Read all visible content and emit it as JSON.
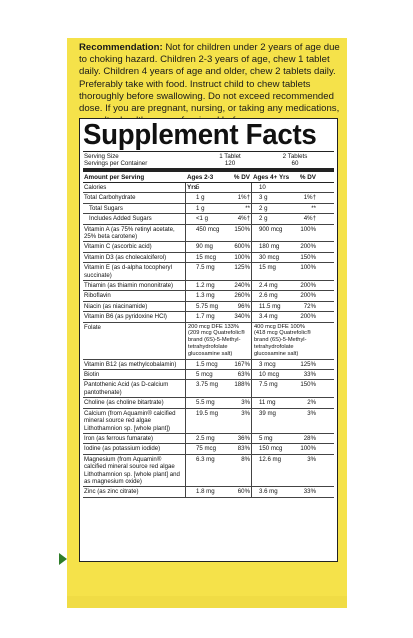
{
  "recommendation": {
    "heading": "Recommendation:",
    "text": " Not for children under 2 years of age due to choking hazard. Children 2-3 years of age, chew 1 tablet daily. Children 4 years of age and older, chew 2 tablets daily. Preferably take with food. Instruct child to chew tablets thoroughly before swallowing. Do not exceed recommended dose. If you are pregnant, nursing, or taking any medications, consult a healthcare professional before use."
  },
  "facts": {
    "title": "Supplement Facts",
    "serving_size_label": "Serving Size",
    "servings_label": "Servings per Container",
    "col_a_size": "1 Tablet",
    "col_a_servings": "120",
    "col_b_size": "2 Tablets",
    "col_b_servings": "60",
    "header": {
      "amount": "Amount per Serving",
      "age_a": "Ages 2-3 Yrs",
      "dv_a": "% DV",
      "age_b": "Ages 4+ Yrs",
      "dv_b": "% DV"
    },
    "rows": [
      {
        "name": "Calories",
        "a": "5",
        "da": "",
        "b": "10",
        "db": ""
      },
      {
        "name": "Total Carbohydrate",
        "a": "1 g",
        "da": "1%†",
        "b": "3 g",
        "db": "1%†"
      },
      {
        "name": "Total Sugars",
        "a": "1 g",
        "da": "**",
        "b": "2 g",
        "db": "**",
        "sub": true
      },
      {
        "name": "Includes Added Sugars",
        "a": "<1 g",
        "da": "4%†",
        "b": "2 g",
        "db": "4%†",
        "sub": true
      },
      {
        "name": "Vitamin A (as 75% retinyl acetate, 25% beta carotene)",
        "a": "450 mcg",
        "da": "150%",
        "b": "900 mcg",
        "db": "100%"
      },
      {
        "name": "Vitamin C (ascorbic acid)",
        "a": "90 mg",
        "da": "600%",
        "b": "180 mg",
        "db": "200%"
      },
      {
        "name": "Vitamin D3 (as cholecalciferol)",
        "a": "15 mcg",
        "da": "100%",
        "b": "30 mcg",
        "db": "150%"
      },
      {
        "name": "Vitamin E (as d-alpha tocopheryl succinate)",
        "a": "7.5 mg",
        "da": "125%",
        "b": "15 mg",
        "db": "100%"
      },
      {
        "name": "Thiamin (as thiamin mononitrate)",
        "a": "1.2 mg",
        "da": "240%",
        "b": "2.4 mg",
        "db": "200%"
      },
      {
        "name": "Riboflavin",
        "a": "1.3 mg",
        "da": "260%",
        "b": "2.6 mg",
        "db": "200%"
      },
      {
        "name": "Niacin (as niacinamide)",
        "a": "5.75 mg",
        "da": "96%",
        "b": "11.5 mg",
        "db": "72%"
      },
      {
        "name": "Vitamin B6 (as pyridoxine HCl)",
        "a": "1.7 mg",
        "da": "340%",
        "b": "3.4 mg",
        "db": "200%"
      },
      {
        "name": "Folate",
        "a": "200 mcg DFE 133% (209 mcg Quatrefolic® brand (6S)-5-Methyl-tetrahydrofolate glucosamine salt)",
        "da": "",
        "b": "400 mcg DFE 100% (418 mcg Quatrefolic® brand (6S)-5-Methyl-tetrahydrofolate glucosamine salt)",
        "db": "",
        "folate": true
      },
      {
        "name": "Vitamin B12 (as methylcobalamin)",
        "a": "1.5 mcg",
        "da": "167%",
        "b": "3 mcg",
        "db": "125%"
      },
      {
        "name": "Biotin",
        "a": "5 mcg",
        "da": "63%",
        "b": "10 mcg",
        "db": "33%"
      },
      {
        "name": "Pantothenic Acid (as D-calcium pantothenate)",
        "a": "3.75 mg",
        "da": "188%",
        "b": "7.5 mg",
        "db": "150%"
      },
      {
        "name": "Choline (as choline bitartrate)",
        "a": "5.5 mg",
        "da": "3%",
        "b": "11 mg",
        "db": "2%"
      },
      {
        "name": "Calcium (from Aquamin® calcified mineral source red algae Lithothamnion sp. [whole plant])",
        "a": "19.5 mg",
        "da": "3%",
        "b": "39 mg",
        "db": "3%"
      },
      {
        "name": "Iron (as ferrous fumarate)",
        "a": "2.5 mg",
        "da": "36%",
        "b": "5 mg",
        "db": "28%"
      },
      {
        "name": "Iodine (as potassium iodide)",
        "a": "75 mcg",
        "da": "83%",
        "b": "150 mcg",
        "db": "100%"
      },
      {
        "name": "Magnesium (from Aquamin® calcified mineral source red algae Lithothamnion sp. [whole plant] and as magnesium oxide)",
        "a": "6.3 mg",
        "da": "8%",
        "b": "12.6 mg",
        "db": "3%"
      },
      {
        "name": "Zinc (as zinc citrate)",
        "a": "1.8 mg",
        "da": "60%",
        "b": "3.6 mg",
        "db": "33%"
      }
    ]
  },
  "colors": {
    "panel": "#f5e24a",
    "marker": "#2f7d2a"
  }
}
